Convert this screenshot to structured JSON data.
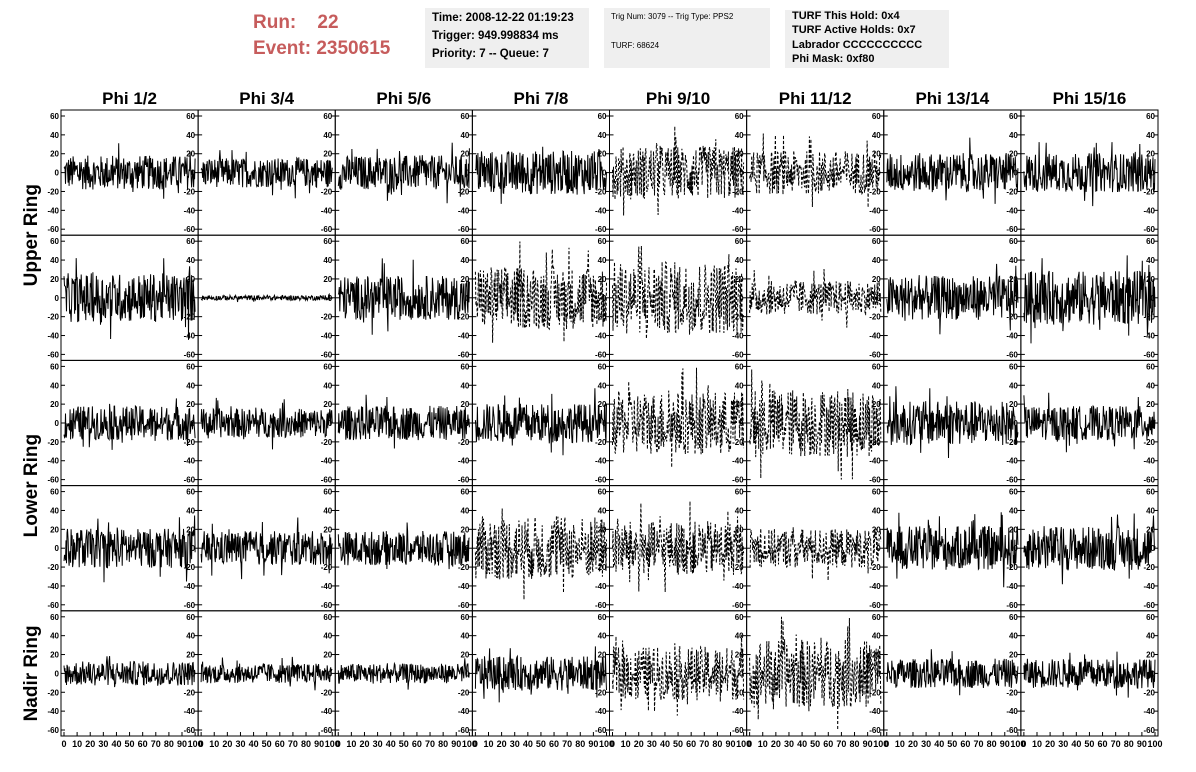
{
  "header": {
    "run_label": "Run:",
    "run_value": "22",
    "event_label": "Event:",
    "event_value": "2350615"
  },
  "info_box_1": {
    "time": "Time: 2008-12-22 01:19:23",
    "trigger": "Trigger: 949.998834 ms",
    "priority": "Priority: 7 -- Queue: 7"
  },
  "info_box_2": {
    "trig": "Trig Num: 3079 -- Trig Type: PPS2",
    "turf": "TURF: 68624"
  },
  "info_box_3": {
    "this_hold": "TURF This Hold: 0x4",
    "active_holds": "TURF Active Holds: 0x7",
    "labrador": "Labrador CCCCCCCCCC",
    "phi_mask": "Phi Mask: 0xf80"
  },
  "colors": {
    "header_accent": "#c65c5c",
    "info_box_bg": "#efefef",
    "trace": "#000000"
  },
  "chart_data": {
    "type": "line",
    "columns": [
      "Phi 1/2",
      "Phi 3/4",
      "Phi 5/6",
      "Phi 7/8",
      "Phi 9/10",
      "Phi 11/12",
      "Phi 13/14",
      "Phi 15/16"
    ],
    "ring_labels": [
      "Upper Ring",
      "Lower Ring",
      "Nadir Ring"
    ],
    "rows": 5,
    "row_ring_membership": [
      0,
      0,
      1,
      1,
      2
    ],
    "ylim": [
      -60,
      60
    ],
    "y_ticks": [
      -60,
      -40,
      -20,
      0,
      20,
      40,
      60
    ],
    "y_tick_labels": [
      "-60",
      "-40",
      "-20",
      "0",
      "20",
      "40",
      "60"
    ],
    "xlim": [
      0,
      100
    ],
    "x_ticks": [
      0,
      10,
      20,
      30,
      40,
      50,
      60,
      70,
      80,
      90,
      100
    ],
    "x_tick_labels": [
      "0",
      "10",
      "20",
      "30",
      "40",
      "50",
      "60",
      "70",
      "80",
      "90",
      "100"
    ],
    "samples_per_trace": 260,
    "trace_amplitude_grid": [
      [
        14,
        12,
        14,
        18,
        22,
        18,
        16,
        16
      ],
      [
        20,
        2,
        18,
        26,
        30,
        14,
        18,
        22
      ],
      [
        14,
        12,
        14,
        16,
        26,
        28,
        18,
        14
      ],
      [
        16,
        14,
        14,
        26,
        22,
        16,
        18,
        18
      ],
      [
        10,
        8,
        8,
        14,
        22,
        28,
        12,
        12
      ]
    ],
    "trace_dashed_grid": [
      [
        false,
        false,
        false,
        false,
        true,
        true,
        false,
        false
      ],
      [
        false,
        false,
        false,
        true,
        true,
        true,
        false,
        false
      ],
      [
        false,
        false,
        false,
        false,
        true,
        true,
        false,
        false
      ],
      [
        false,
        false,
        false,
        true,
        true,
        true,
        false,
        false
      ],
      [
        false,
        false,
        false,
        false,
        true,
        true,
        false,
        false
      ]
    ]
  }
}
